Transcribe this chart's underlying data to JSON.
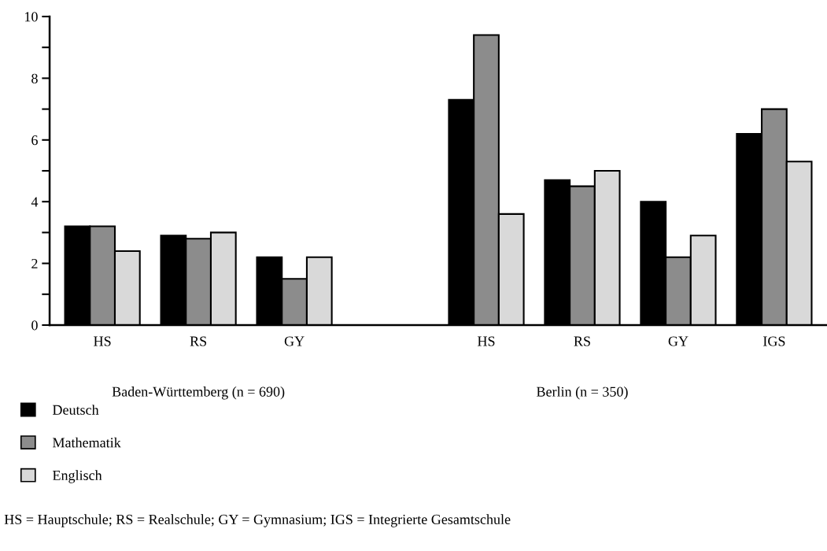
{
  "chart_data": {
    "type": "bar",
    "categories": [
      "HS",
      "RS",
      "GY",
      null,
      "HS",
      "RS",
      "GY",
      "IGS"
    ],
    "series": [
      {
        "name": "Deutsch",
        "color": "#000000",
        "values": [
          3.2,
          2.9,
          2.2,
          null,
          7.3,
          4.7,
          4.0,
          6.2
        ]
      },
      {
        "name": "Mathematik",
        "color": "#8c8c8c",
        "values": [
          3.2,
          2.8,
          1.5,
          null,
          9.4,
          4.5,
          2.2,
          7.0
        ]
      },
      {
        "name": "Englisch",
        "color": "#d9d9d9",
        "values": [
          2.4,
          3.0,
          2.2,
          null,
          3.6,
          5.0,
          2.9,
          5.3
        ]
      }
    ],
    "ylim": [
      0,
      10
    ],
    "yticks": [
      0,
      {
        "value": 1,
        "label": null
      },
      2,
      {
        "value": 3,
        "label": null
      },
      4,
      {
        "value": 5,
        "label": null
      },
      6,
      {
        "value": 7,
        "label": null
      },
      8,
      {
        "value": 9,
        "label": null
      },
      10
    ],
    "annotations": [
      "Baden-Württemberg (n = 690)",
      "Berlin (n = 350)",
      "HS = Hauptschule; RS = Realschule; GY = Gymnasium; IGS = Integrierte Gesamtschule"
    ],
    "legend": "bottom left",
    "grid": false
  }
}
